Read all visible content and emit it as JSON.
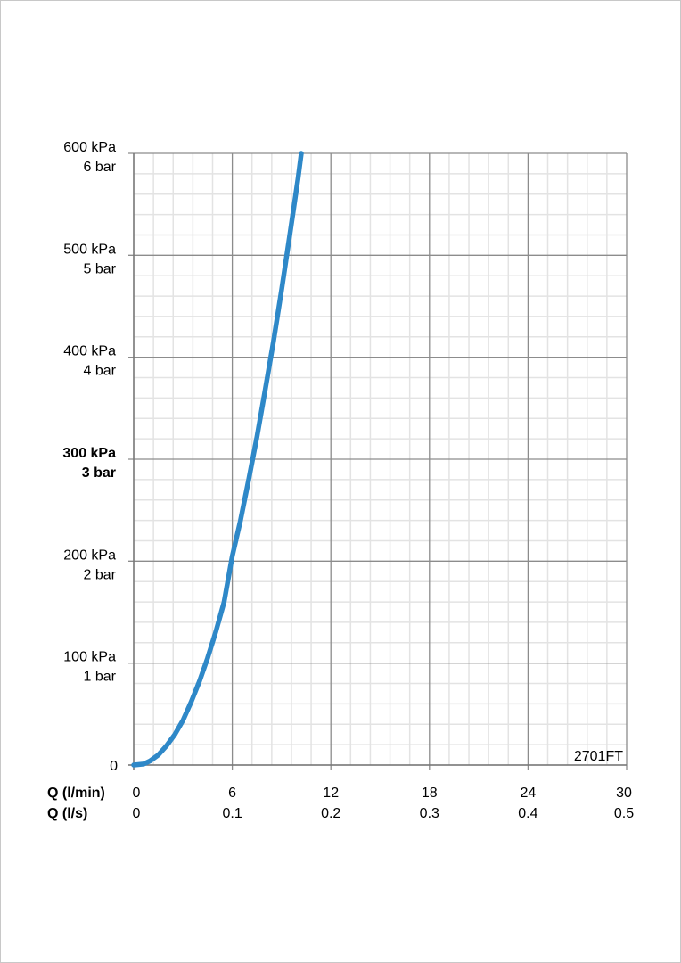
{
  "chart_data": {
    "type": "line",
    "title": "",
    "watermark": "2701FT",
    "x_axis": {
      "row_labels": [
        "Q (l/min)",
        "Q (l/s)"
      ],
      "range": [
        0,
        30
      ],
      "ticks_lmin": [
        "0",
        "6",
        "12",
        "18",
        "24",
        "30"
      ],
      "ticks_ls": [
        "0",
        "0.1",
        "0.2",
        "0.3",
        "0.4",
        "0.5"
      ],
      "minor_divisions": 5
    },
    "y_axis": {
      "range": [
        0,
        600
      ],
      "ticks": [
        {
          "value": 0,
          "kpa": "0",
          "bar": ""
        },
        {
          "value": 100,
          "kpa": "100 kPa",
          "bar": "1 bar"
        },
        {
          "value": 200,
          "kpa": "200 kPa",
          "bar": "2 bar"
        },
        {
          "value": 300,
          "kpa": "300 kPa",
          "bar": "3 bar",
          "bold": true
        },
        {
          "value": 400,
          "kpa": "400 kPa",
          "bar": "4 bar"
        },
        {
          "value": 500,
          "kpa": "500 kPa",
          "bar": "5 bar"
        },
        {
          "value": 600,
          "kpa": "600 kPa",
          "bar": "6 bar"
        }
      ],
      "minor_divisions": 5
    },
    "grid": true,
    "series": [
      {
        "color": "#2e88c8",
        "x": [
          0,
          0.6,
          1,
          1.5,
          2,
          2.5,
          3,
          3.5,
          4,
          4.5,
          5,
          5.5,
          6,
          6.5,
          7,
          7.5,
          8,
          8.5,
          9,
          9.5,
          10,
          10.2
        ],
        "y": [
          0,
          1,
          4,
          10,
          19,
          30,
          44,
          62,
          82,
          105,
          131,
          160,
          205,
          240,
          280,
          322,
          368,
          415,
          466,
          520,
          575,
          600
        ]
      }
    ]
  }
}
